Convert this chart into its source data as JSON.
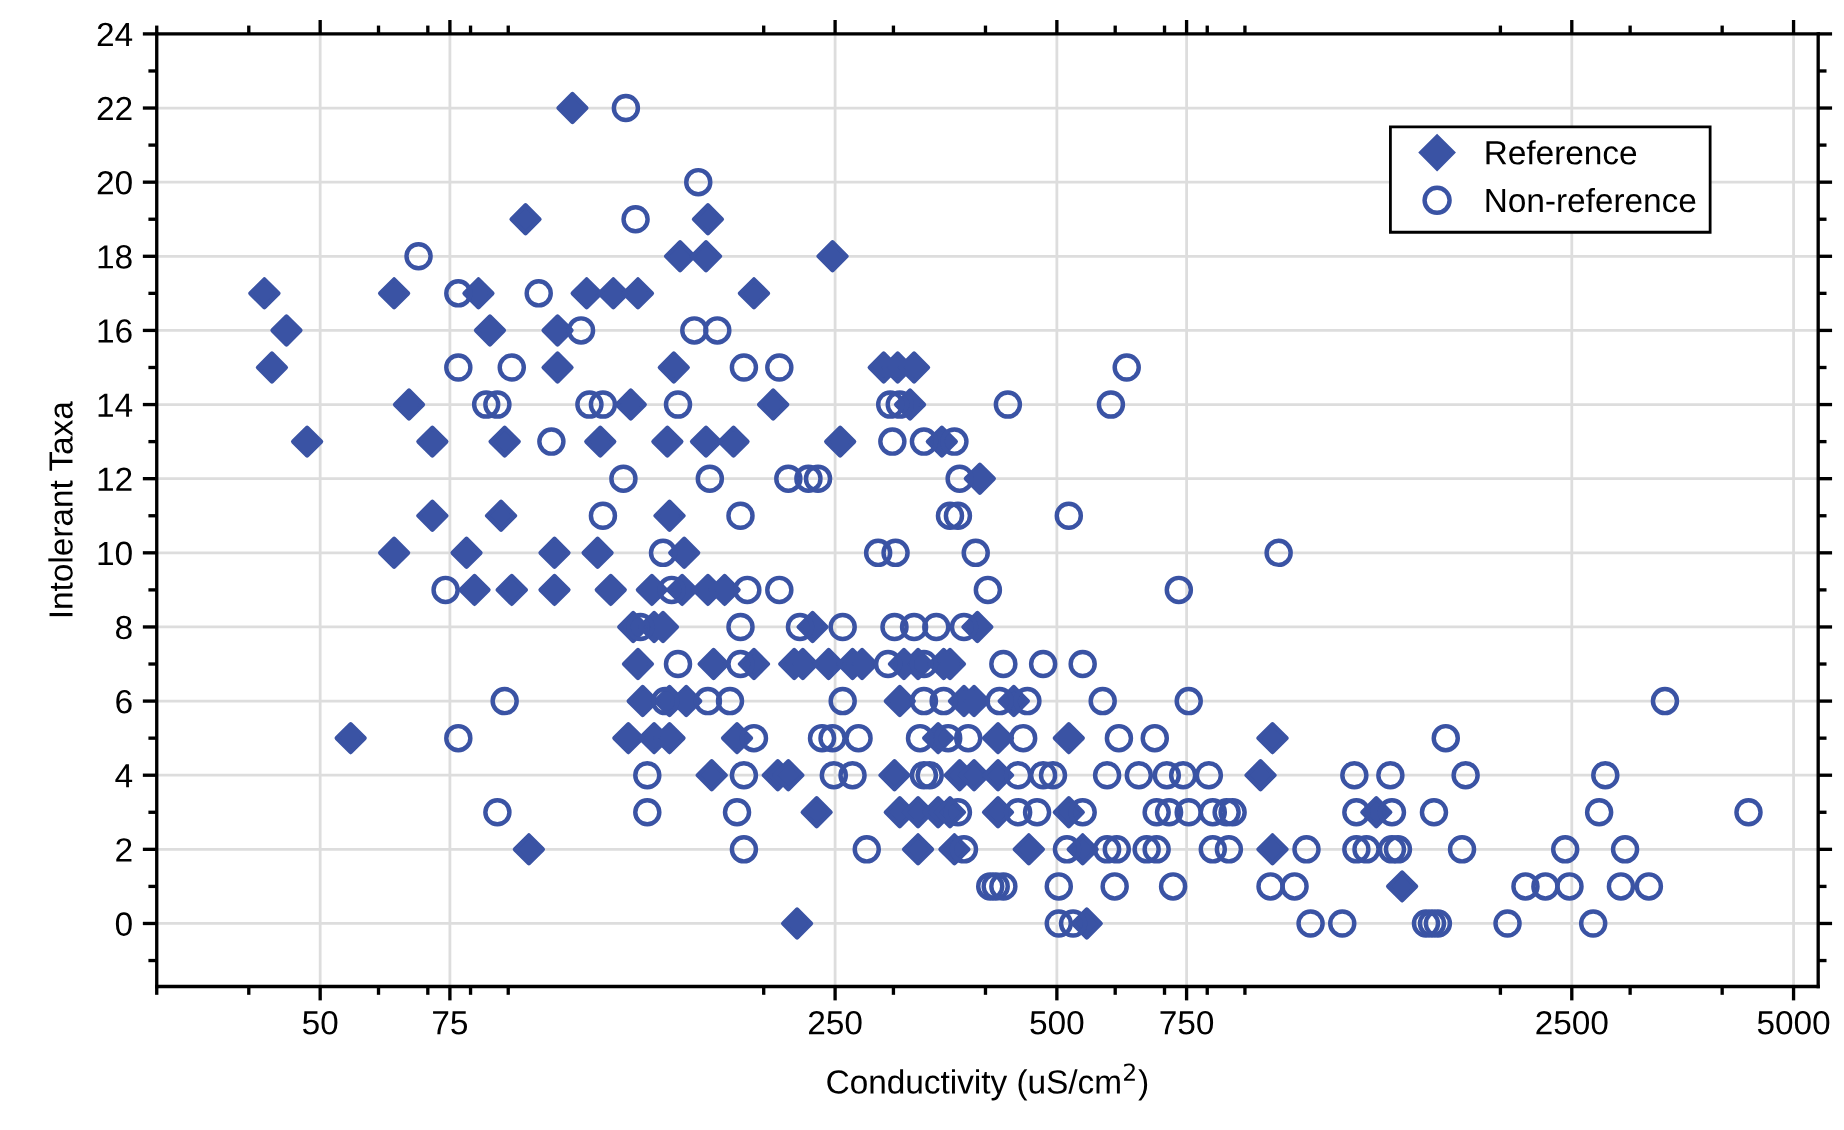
{
  "chart_data": {
    "type": "scatter",
    "xlabel": "Conductivity (uS/cm$^{2}$)",
    "ylabel": "Intolerant Taxa",
    "log": "x",
    "xlim": [
      30,
      5400
    ],
    "xticks": [
      50,
      75,
      250,
      500,
      750,
      2500,
      5000
    ],
    "ylim": [
      -1.7,
      24
    ],
    "yticks": [
      0,
      2,
      4,
      6,
      8,
      10,
      12,
      14,
      16,
      18,
      20,
      22,
      24
    ],
    "grid": true,
    "legend": "top right",
    "series": [
      {
        "name": "Reference",
        "color": "#3a53a4",
        "marker": "diamond",
        "x": [
          110,
          95,
          168,
          154,
          167,
          248,
          42,
          63,
          82,
          115,
          125,
          135,
          194,
          45,
          85,
          105,
          43,
          105,
          151,
          291,
          304,
          320,
          66,
          132,
          206,
          316,
          48,
          71,
          89,
          120,
          148,
          167,
          182,
          254,
          349,
          393,
          71,
          88,
          149,
          63,
          79,
          104,
          119,
          156,
          81,
          91,
          104,
          124,
          141,
          155,
          168,
          177,
          133,
          142,
          146,
          233,
          390,
          135,
          171,
          194,
          220,
          226,
          245,
          264,
          272,
          310,
          324,
          351,
          358,
          137,
          149,
          157,
          306,
          374,
          386,
          437,
          55,
          131,
          142,
          149,
          184,
          345,
          416,
          519,
          981,
          170,
          209,
          216,
          301,
          369,
          386,
          416,
          945,
          236,
          306,
          324,
          345,
          358,
          416,
          519,
          1357,
          96,
          324,
          363,
          458,
          542,
          981,
          1471,
          222,
          549
        ],
        "values": [
          22,
          19,
          19,
          18,
          18,
          18,
          17,
          17,
          17,
          17,
          17,
          17,
          17,
          16,
          16,
          16,
          15,
          15,
          15,
          15,
          15,
          15,
          14,
          14,
          14,
          14,
          13,
          13,
          13,
          13,
          13,
          13,
          13,
          13,
          13,
          12,
          11,
          11,
          11,
          10,
          10,
          10,
          10,
          10,
          9,
          9,
          9,
          9,
          9,
          9,
          9,
          9,
          8,
          8,
          8,
          8,
          8,
          7,
          7,
          7,
          7,
          7,
          7,
          7,
          7,
          7,
          7,
          7,
          7,
          6,
          6,
          6,
          6,
          6,
          6,
          6,
          5,
          5,
          5,
          5,
          5,
          5,
          5,
          5,
          5,
          4,
          4,
          4,
          4,
          4,
          4,
          4,
          4,
          3,
          3,
          3,
          3,
          3,
          3,
          3,
          3,
          2,
          2,
          2,
          2,
          2,
          2,
          1,
          0,
          0
        ]
      },
      {
        "name": "Non-reference",
        "color": "#3a53a4",
        "marker": "circle",
        "x": [
          130,
          163,
          134,
          68,
          77,
          99,
          113,
          161,
          173,
          77,
          91,
          188,
          210,
          622,
          84,
          87,
          116,
          121,
          153,
          297,
          306,
          429,
          592,
          103,
          299,
          330,
          363,
          129,
          169,
          216,
          230,
          237,
          369,
          121,
          186,
          358,
          367,
          519,
          146,
          286,
          302,
          388,
          1000,
          74,
          150,
          190,
          210,
          403,
          732,
          136,
          186,
          224,
          256,
          301,
          320,
          343,
          374,
          153,
          186,
          295,
          330,
          423,
          479,
          542,
          89,
          147,
          168,
          180,
          256,
          330,
          351,
          418,
          456,
          577,
          755,
          3345,
          77,
          194,
          240,
          248,
          269,
          326,
          356,
          379,
          450,
          607,
          679,
          1686,
          139,
          188,
          249,
          264,
          330,
          336,
          443,
          479,
          494,
          585,
          646,
          705,
          742,
          804,
          1267,
          1418,
          1794,
          2776,
          87,
          139,
          184,
          367,
          443,
          470,
          542,
          683,
          710,
          755,
          814,
          850,
          866,
          1275,
          1425,
          1625,
          2723,
          4343,
          188,
          276,
          374,
          516,
          585,
          603,
          662,
          683,
          814,
          856,
          1091,
          1275,
          1316,
          1425,
          1452,
          1774,
          2449,
          2953,
          406,
          413,
          423,
          503,
          599,
          719,
          975,
          1051,
          2163,
          2302,
          2482,
          2915,
          3181,
          503,
          526,
          1105,
          1220,
          1585,
          1615,
          1645,
          2045,
          2673
        ],
        "values": [
          22,
          20,
          19,
          18,
          17,
          17,
          16,
          16,
          16,
          15,
          15,
          15,
          15,
          15,
          14,
          14,
          14,
          14,
          14,
          14,
          14,
          14,
          14,
          13,
          13,
          13,
          13,
          12,
          12,
          12,
          12,
          12,
          12,
          11,
          11,
          11,
          11,
          11,
          10,
          10,
          10,
          10,
          10,
          9,
          9,
          9,
          9,
          9,
          9,
          8,
          8,
          8,
          8,
          8,
          8,
          8,
          8,
          7,
          7,
          7,
          7,
          7,
          7,
          7,
          6,
          6,
          6,
          6,
          6,
          6,
          6,
          6,
          6,
          6,
          6,
          6,
          5,
          5,
          5,
          5,
          5,
          5,
          5,
          5,
          5,
          5,
          5,
          5,
          4,
          4,
          4,
          4,
          4,
          4,
          4,
          4,
          4,
          4,
          4,
          4,
          4,
          4,
          4,
          4,
          4,
          4,
          3,
          3,
          3,
          3,
          3,
          3,
          3,
          3,
          3,
          3,
          3,
          3,
          3,
          3,
          3,
          3,
          3,
          3,
          2,
          2,
          2,
          2,
          2,
          2,
          2,
          2,
          2,
          2,
          2,
          2,
          2,
          2,
          2,
          2,
          2,
          2,
          1,
          1,
          1,
          1,
          1,
          1,
          1,
          1,
          1,
          1,
          1,
          1,
          1,
          0,
          0,
          0,
          0,
          0,
          0,
          0,
          0,
          0
        ]
      }
    ]
  }
}
